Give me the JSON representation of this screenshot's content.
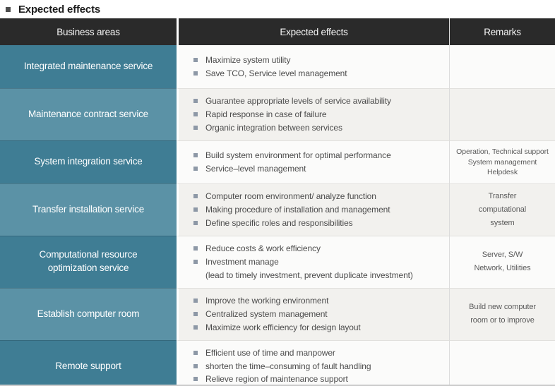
{
  "page": {
    "title": "Expected effects"
  },
  "colors": {
    "header_bg": "#2a2a2a",
    "teal_dark": "#3f7d94",
    "teal_light": "#5b92a6",
    "row_bg": "#fbfbfa",
    "row_alt_bg": "#f2f1ee",
    "bullet": "#8d98a6",
    "effects_text": "#4c4c4c",
    "remarks_text": "#5a5a5a"
  },
  "table": {
    "headers": [
      "Business areas",
      "Expected effects",
      "Remarks"
    ],
    "rows": [
      {
        "area": "Integrated maintenance service",
        "effects": [
          {
            "text": "Maximize system utility"
          },
          {
            "text": "Save TCO, Service level management"
          }
        ],
        "remarks": []
      },
      {
        "area": "Maintenance contract service",
        "effects": [
          {
            "text": "Guarantee appropriate levels of service availability"
          },
          {
            "text": "Rapid response in case of failure"
          },
          {
            "text": "Organic integration between services"
          }
        ],
        "remarks": []
      },
      {
        "area": "System integration service",
        "effects": [
          {
            "text": "Build system environment for optimal performance"
          },
          {
            "text": "Service–level management"
          }
        ],
        "remarks": [
          "Operation, Technical support",
          "System management",
          "Helpdesk"
        ],
        "remarks_small": true
      },
      {
        "area": "Transfer installation service",
        "effects": [
          {
            "text": "Computer room environment/ analyze function"
          },
          {
            "text": "Making procedure of installation and management"
          },
          {
            "text": "Define specific roles and responsibilities"
          }
        ],
        "remarks": [
          "Transfer",
          "computational",
          "system"
        ]
      },
      {
        "area": "Computational resource optimization service",
        "effects": [
          {
            "text": "Reduce costs & work efficiency"
          },
          {
            "text": "Investment manage",
            "sub": "(lead to timely investment, prevent duplicate investment)"
          }
        ],
        "remarks": [
          "Server, S/W",
          "Network, Utilities"
        ]
      },
      {
        "area": "Establish computer room",
        "effects": [
          {
            "text": "Improve the working environment"
          },
          {
            "text": "Centralized system management"
          },
          {
            "text": "Maximize work efficiency for design layout"
          }
        ],
        "remarks": [
          "Build new computer",
          "room or to improve"
        ]
      },
      {
        "area": "Remote support",
        "effects": [
          {
            "text": "Efficient use of time and manpower"
          },
          {
            "text": "shorten the time–consuming of fault handling"
          },
          {
            "text": "Relieve region of maintenance support"
          }
        ],
        "remarks": []
      }
    ]
  }
}
